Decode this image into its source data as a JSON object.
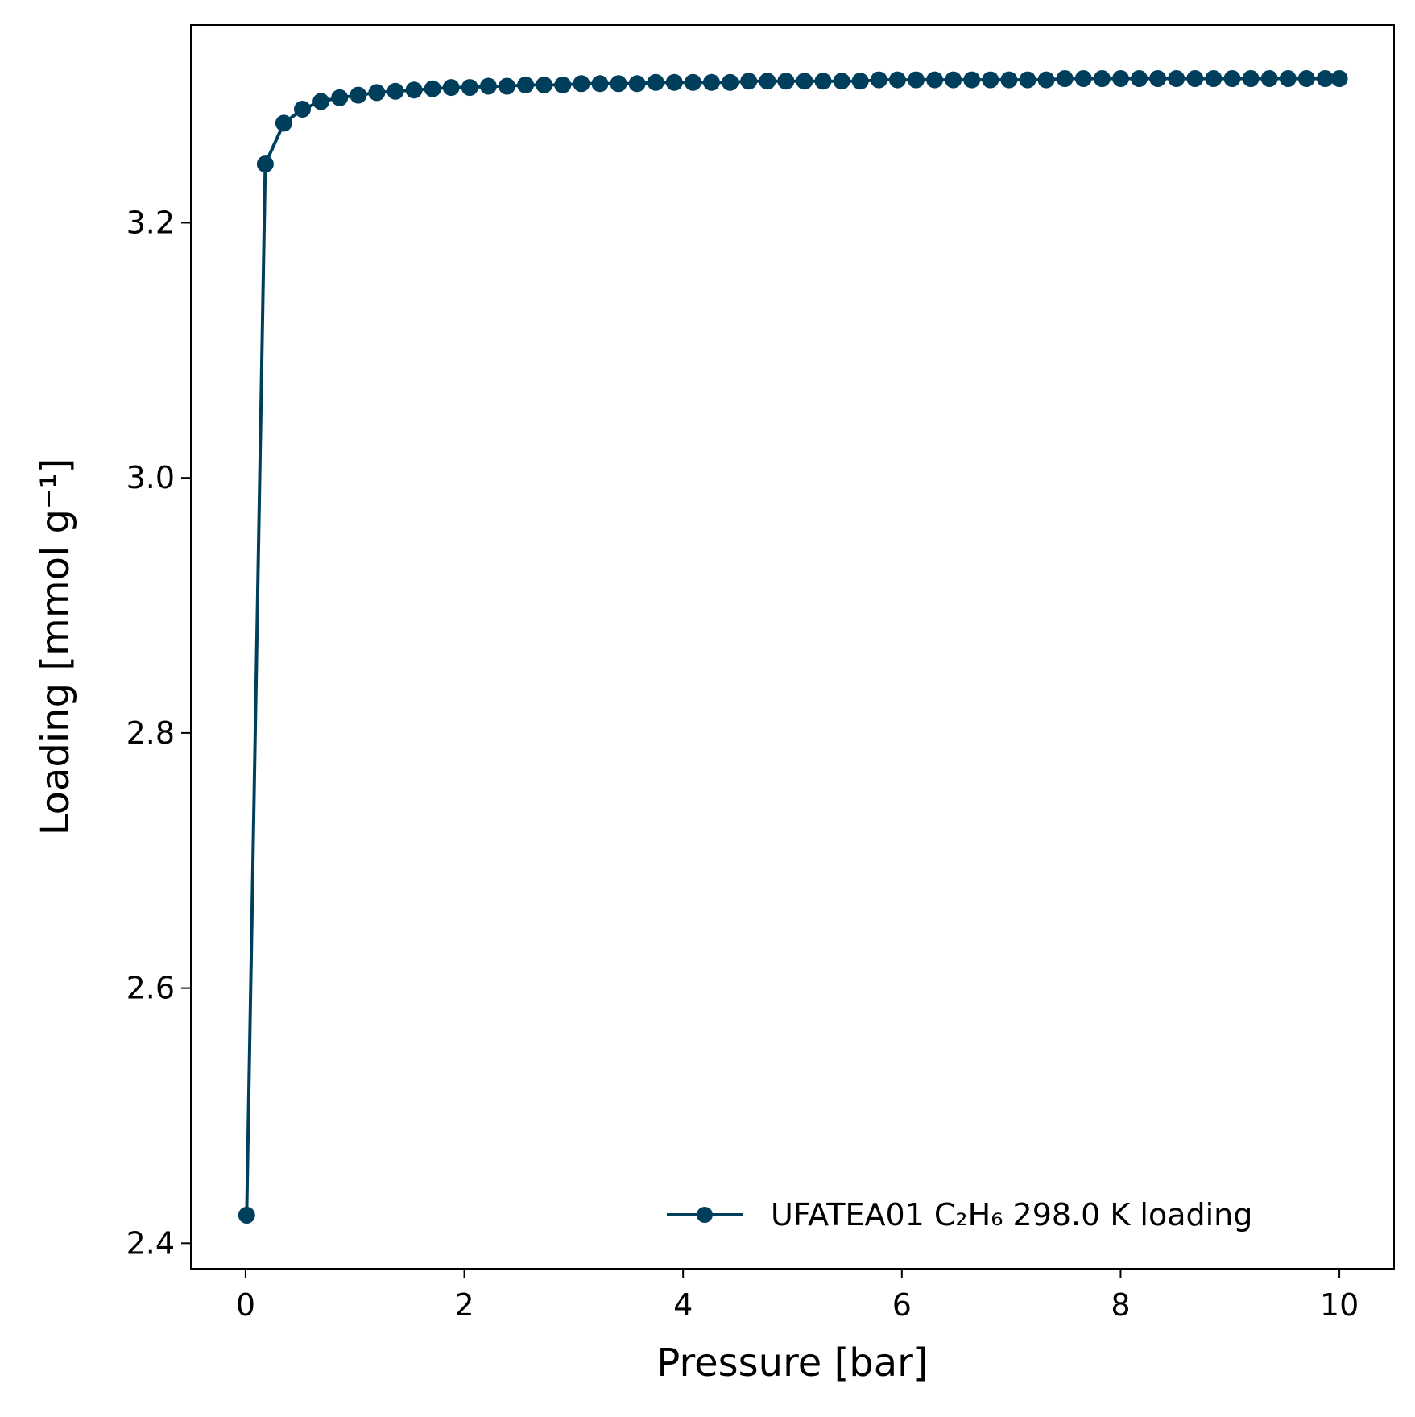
{
  "chart_data": {
    "type": "line",
    "title": "",
    "xlabel": "Pressure [bar]",
    "ylabel": "Loading [mmol g⁻¹]",
    "xlim": [
      -0.5,
      10.5
    ],
    "ylim": [
      2.38,
      3.355
    ],
    "xticks": [
      "0",
      "2",
      "4",
      "6",
      "8",
      "10"
    ],
    "yticks": [
      "2.4",
      "2.6",
      "2.8",
      "3.0",
      "3.2"
    ],
    "grid": false,
    "legend_position": "lower-right",
    "series": [
      {
        "name": "UFATEA01 C₂H₆ 298.0 K loading",
        "color": "#003f5c",
        "marker": "circle",
        "x": [
          0.01,
          0.18,
          0.35,
          0.52,
          0.69,
          0.86,
          1.03,
          1.2,
          1.37,
          1.54,
          1.71,
          1.88,
          2.05,
          2.22,
          2.39,
          2.56,
          2.73,
          2.9,
          3.07,
          3.24,
          3.41,
          3.58,
          3.75,
          3.92,
          4.09,
          4.26,
          4.43,
          4.6,
          4.77,
          4.94,
          5.11,
          5.28,
          5.45,
          5.62,
          5.79,
          5.96,
          6.13,
          6.3,
          6.47,
          6.64,
          6.81,
          6.98,
          7.15,
          7.32,
          7.49,
          7.66,
          7.83,
          8.0,
          8.17,
          8.34,
          8.51,
          8.68,
          8.85,
          9.02,
          9.19,
          9.36,
          9.53,
          9.7,
          9.87,
          10.0
        ],
        "y": [
          2.422,
          3.246,
          3.278,
          3.289,
          3.295,
          3.298,
          3.3,
          3.302,
          3.303,
          3.304,
          3.305,
          3.306,
          3.306,
          3.307,
          3.307,
          3.308,
          3.308,
          3.308,
          3.309,
          3.309,
          3.309,
          3.309,
          3.31,
          3.31,
          3.31,
          3.31,
          3.31,
          3.311,
          3.311,
          3.311,
          3.311,
          3.311,
          3.311,
          3.311,
          3.312,
          3.312,
          3.312,
          3.312,
          3.312,
          3.312,
          3.312,
          3.312,
          3.312,
          3.312,
          3.313,
          3.313,
          3.313,
          3.313,
          3.313,
          3.313,
          3.313,
          3.313,
          3.313,
          3.313,
          3.313,
          3.313,
          3.313,
          3.313,
          3.313,
          3.313
        ]
      }
    ]
  }
}
